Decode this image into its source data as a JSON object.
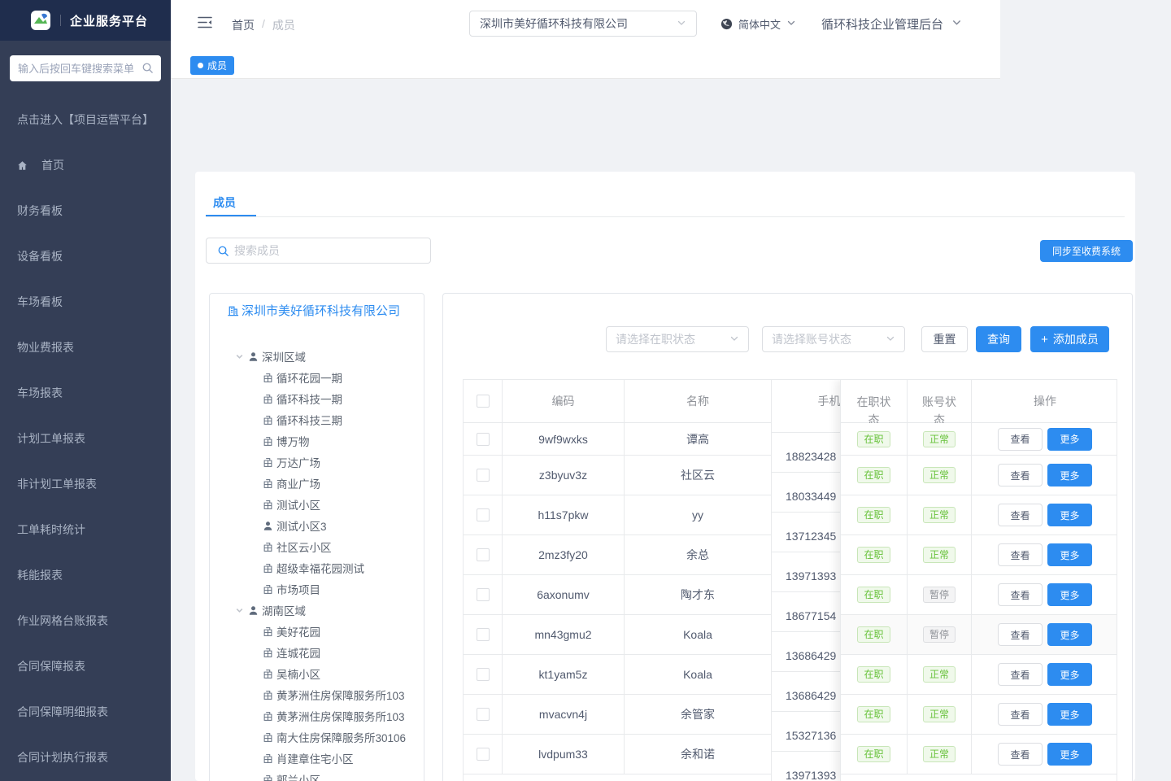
{
  "app": {
    "title": "企业服务平台"
  },
  "sidebar": {
    "search_placeholder": "输入后按回车键搜索菜单",
    "menu": [
      {
        "label": "点击进入【项目运营平台】"
      },
      {
        "label": "首页",
        "icon": "home"
      },
      {
        "label": "财务看板"
      },
      {
        "label": "设备看板"
      },
      {
        "label": "车场看板"
      },
      {
        "label": "物业费报表"
      },
      {
        "label": "车场报表"
      },
      {
        "label": "计划工单报表"
      },
      {
        "label": "非计划工单报表"
      },
      {
        "label": "工单耗时统计"
      },
      {
        "label": "耗能报表"
      },
      {
        "label": "作业网格台账报表"
      },
      {
        "label": "合同保障报表"
      },
      {
        "label": "合同保障明细报表"
      },
      {
        "label": "合同计划执行报表"
      }
    ]
  },
  "header": {
    "breadcrumb": {
      "home": "首页",
      "separator": "/",
      "current": "成员"
    },
    "company_select": "深圳市美好循环科技有限公司",
    "language": "简体中文",
    "workspace": "循环科技企业管理后台"
  },
  "tabstrip": {
    "active_tab": "成员"
  },
  "member_card": {
    "tab": "成员",
    "search_placeholder": "搜索成员",
    "sync_button": "同步至收费系统"
  },
  "tree": {
    "company": "深圳市美好循环科技有限公司",
    "regions": [
      {
        "name": "深圳区域",
        "items": [
          {
            "label": "循环花园一期",
            "icon": "community"
          },
          {
            "label": "循环科技一期",
            "icon": "community"
          },
          {
            "label": "循环科技三期",
            "icon": "community"
          },
          {
            "label": "博万物",
            "icon": "community"
          },
          {
            "label": "万达广场",
            "icon": "community"
          },
          {
            "label": "商业广场",
            "icon": "community"
          },
          {
            "label": "测试小区",
            "icon": "community"
          },
          {
            "label": "测试小区3",
            "icon": "person"
          },
          {
            "label": "社区云小区",
            "icon": "community"
          },
          {
            "label": "超级幸福花园测试",
            "icon": "community"
          },
          {
            "label": "市场项目",
            "icon": "community"
          }
        ]
      },
      {
        "name": "湖南区域",
        "items": [
          {
            "label": "美好花园",
            "icon": "community"
          },
          {
            "label": "连城花园",
            "icon": "community"
          },
          {
            "label": "吴楠小区",
            "icon": "community"
          },
          {
            "label": "黄茅洲住房保障服务所103",
            "icon": "community"
          },
          {
            "label": "黄茅洲住房保障服务所103",
            "icon": "community"
          },
          {
            "label": "南大住房保障服务所30106",
            "icon": "community"
          },
          {
            "label": "肖建章住宅小区",
            "icon": "community"
          },
          {
            "label": "郭兰小区",
            "icon": "community"
          }
        ]
      }
    ]
  },
  "filters": {
    "job_status_placeholder": "请选择在职状态",
    "account_status_placeholder": "请选择账号状态",
    "reset_label": "重置",
    "query_label": "查询",
    "add_label": "添加成员"
  },
  "table": {
    "columns": [
      "编码",
      "名称",
      "手机",
      "在职状态",
      "账号状态",
      "操作"
    ],
    "view_label": "查看",
    "more_label": "更多",
    "rows": [
      {
        "code": "9wf9wxks",
        "name": "谭高",
        "phone": "18823428",
        "job_status": "在职",
        "account_status": "正常"
      },
      {
        "code": "z3byuv3z",
        "name": "社区云",
        "phone": "18033449",
        "job_status": "在职",
        "account_status": "正常"
      },
      {
        "code": "h11s7pkw",
        "name": "yy",
        "phone": "13712345",
        "job_status": "在职",
        "account_status": "正常"
      },
      {
        "code": "2mz3fy20",
        "name": "余总",
        "phone": "13971393",
        "job_status": "在职",
        "account_status": "正常"
      },
      {
        "code": "6axonumv",
        "name": "陶才东",
        "phone": "18677154",
        "job_status": "在职",
        "account_status": "暂停"
      },
      {
        "code": "mn43gmu2",
        "name": "Koala",
        "phone": "13686429",
        "job_status": "在职",
        "account_status": "暂停",
        "highlighted": true
      },
      {
        "code": "kt1yam5z",
        "name": "Koala",
        "phone": "13686429",
        "job_status": "在职",
        "account_status": "正常"
      },
      {
        "code": "mvacvn4j",
        "name": "余管家",
        "phone": "15327136",
        "job_status": "在职",
        "account_status": "正常"
      },
      {
        "code": "lvdpum33",
        "name": "余和诺",
        "phone": "13971393",
        "job_status": "在职",
        "account_status": "正常"
      }
    ]
  },
  "colors": {
    "primary": "#2d8cf0",
    "sidebar_header": "#1f2d4d",
    "sidebar_body": "#343e56",
    "success_text": "#67c23a",
    "info_text": "#909399",
    "page_background": "#f0f2f5"
  }
}
